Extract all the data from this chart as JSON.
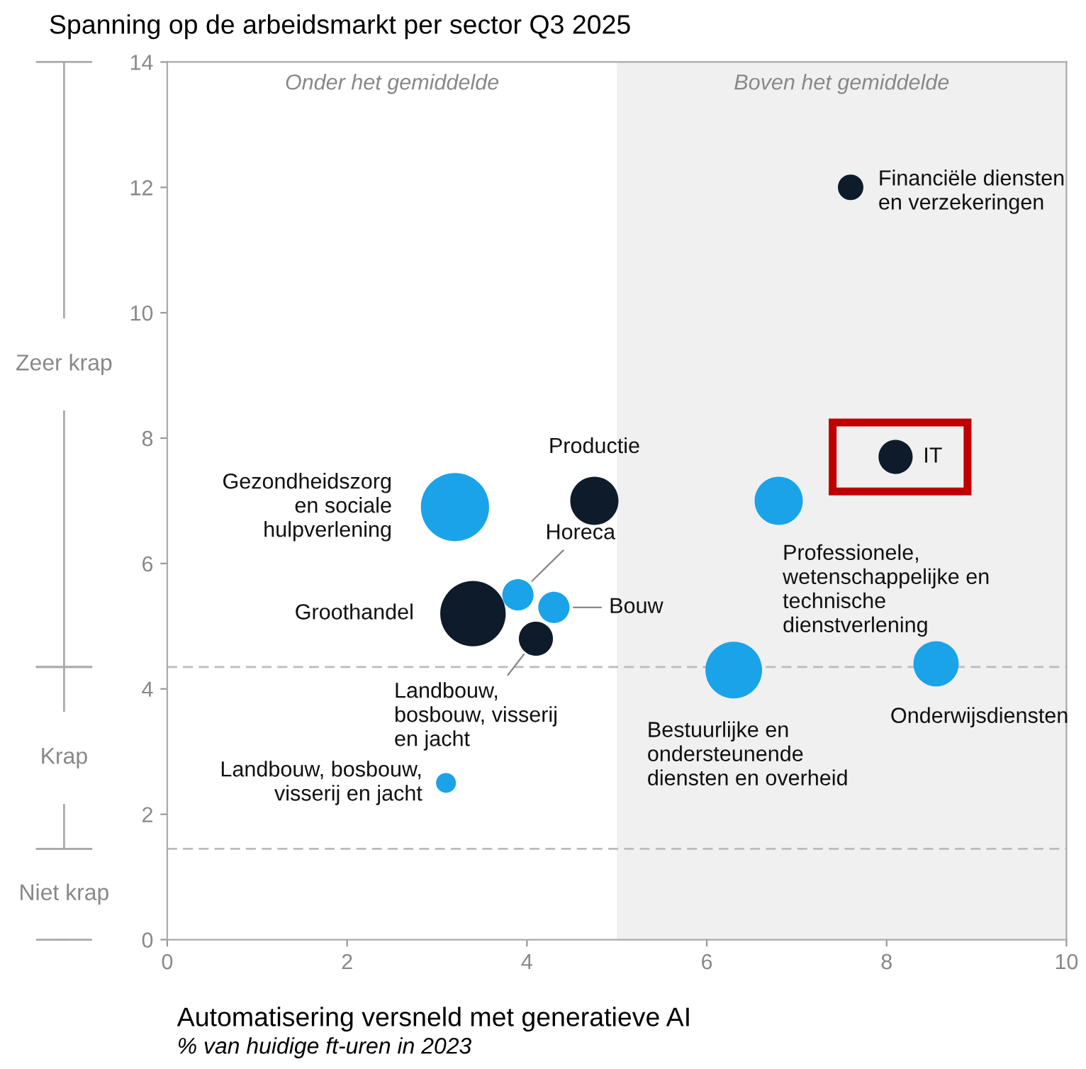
{
  "chart_data": {
    "type": "bubble",
    "title": "Spanning op de arbeidsmarkt per sector Q3 2025",
    "xlabel": "Automatisering versneld met generatieve AI",
    "xlim": [
      0,
      10
    ],
    "xticks": [
      0,
      2,
      4,
      6,
      8,
      10
    ],
    "ylim": [
      0,
      14
    ],
    "yticks": [
      0,
      2,
      4,
      6,
      8,
      10,
      12,
      14
    ],
    "grid": false,
    "legend": false,
    "marker": "circle",
    "series": [
      {
        "color": "#0d1b2a",
        "x": [
          7.6,
          8.1,
          4.75,
          3.4,
          4.1
        ],
        "values": [
          12.0,
          7.7,
          7.0,
          5.2,
          4.8
        ],
        "sizes": [
          0.14,
          0.25,
          0.5,
          0.92,
          0.25
        ]
      },
      {
        "color": "#1aa3e8",
        "x": [
          6.8,
          3.2,
          3.9,
          4.3,
          6.3,
          8.55,
          3.1
        ],
        "values": [
          7.0,
          6.9,
          5.5,
          5.3,
          4.3,
          4.4,
          2.5
        ],
        "sizes": [
          0.5,
          1,
          0.21,
          0.21,
          0.69,
          0.44,
          0.085
        ]
      }
    ],
    "bands": [
      {
        "axis": "x",
        "from": 5,
        "to": 10,
        "label": "Boven het gemiddelde",
        "color": "#f0f0f0"
      }
    ],
    "ref_lines": [
      {
        "axis": "y",
        "value": 4.35,
        "line_style": "dashed",
        "color": "#bbbbbb"
      },
      {
        "axis": "y",
        "value": 1.45,
        "line_style": "dashed",
        "color": "#bbbbbb"
      }
    ],
    "annotations": [
      {
        "text": "Financiële diensten\nen verzekeringen",
        "x": 7.6,
        "y": 12.0
      },
      {
        "text": "IT",
        "x": 8.1,
        "y": 7.7
      },
      {
        "text": "Productie",
        "x": 4.75,
        "y": 7.0
      },
      {
        "text": "Professionele,\nwetenschappelijke en\ntechnische\ndienstverlening",
        "x": 6.8,
        "y": 7.0
      },
      {
        "text": "Gezondheidszorg\nen sociale\nhulpverlening",
        "x": 3.2,
        "y": 6.9
      },
      {
        "text": "Horeca",
        "x": 3.9,
        "y": 5.5
      },
      {
        "text": "Bouw",
        "x": 4.3,
        "y": 5.3
      },
      {
        "text": "Groothandel",
        "x": 3.4,
        "y": 5.2
      },
      {
        "text": "Landbouw,\nbosbouw, visserij\nen jacht",
        "x": 4.1,
        "y": 4.8
      },
      {
        "text": "Bestuurlijke en\nondersteunende\ndiensten en overheid",
        "x": 6.3,
        "y": 4.3
      },
      {
        "text": "Onderwijsdiensten",
        "x": 8.55,
        "y": 4.4
      },
      {
        "text": "Landbouw, bosbouw,\nvisserij en jacht",
        "x": 3.1,
        "y": 2.5
      },
      "Onder het gemiddelde",
      "% van huidige ft-uren in 2023",
      "Zeer krap",
      "Krap",
      "Niet krap"
    ]
  }
}
